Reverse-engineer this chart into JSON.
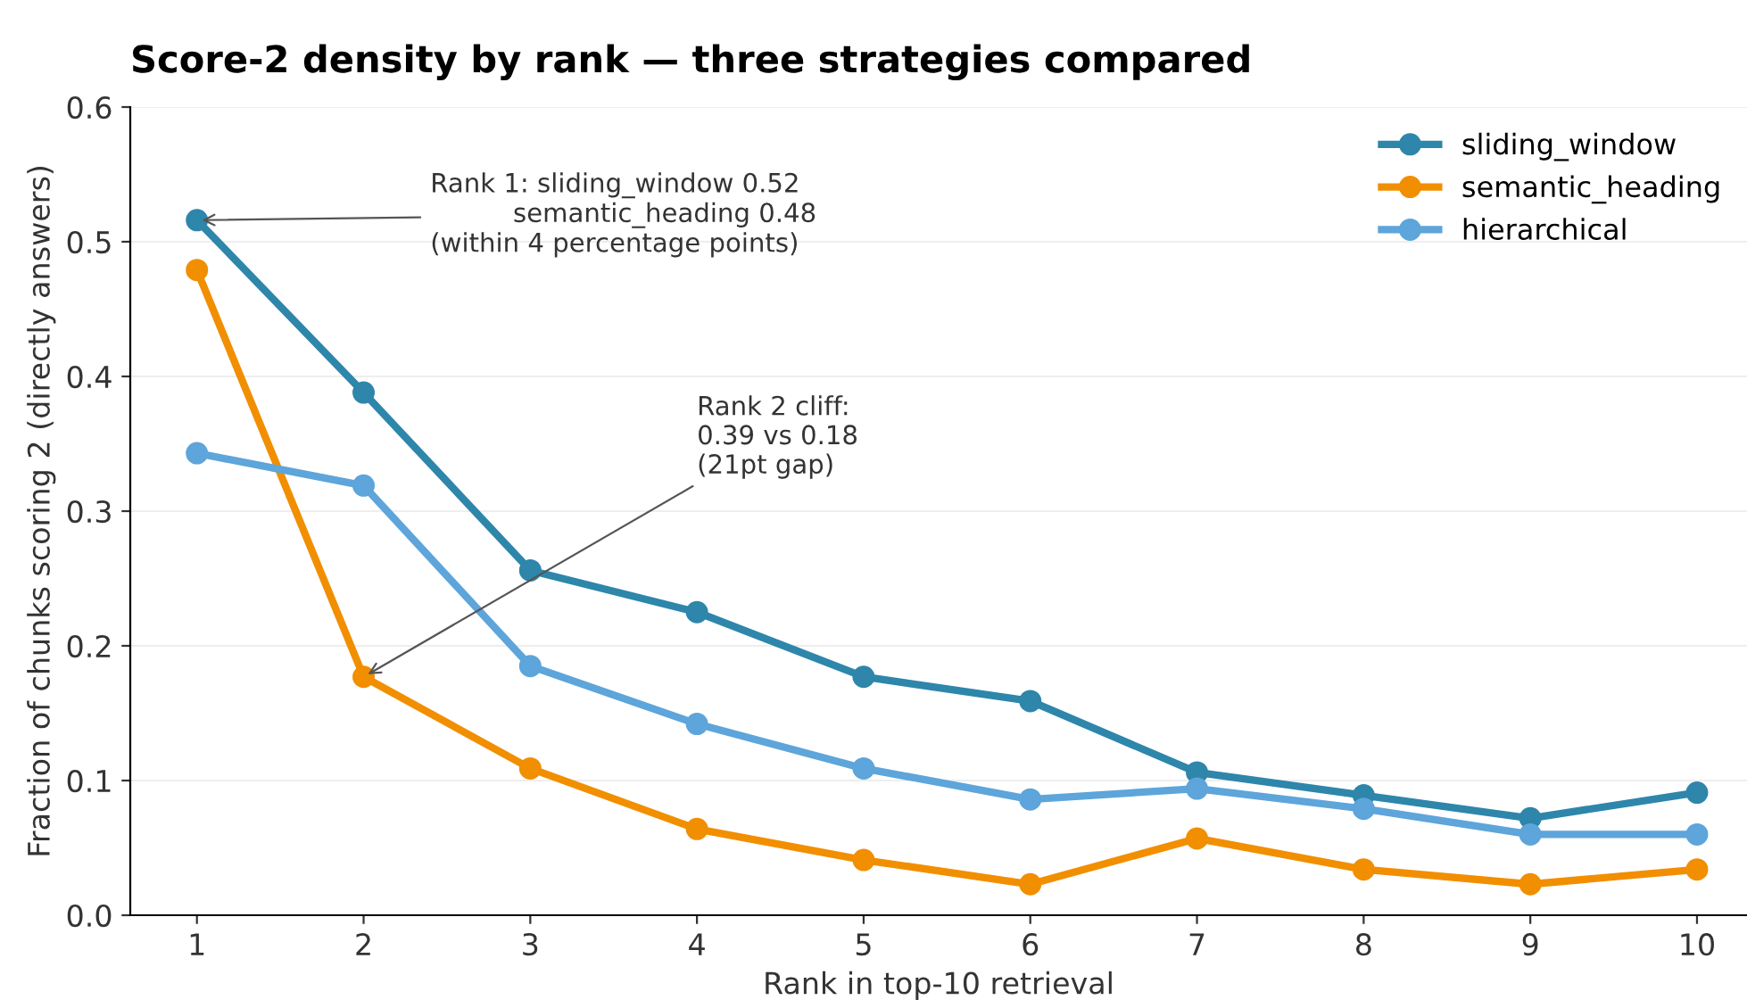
{
  "chart_data": {
    "type": "line",
    "title": "Score-2 density by rank — three strategies compared",
    "xlabel": "Rank in top-10 retrieval",
    "ylabel": "Fraction of chunks scoring 2 (directly answers)",
    "x": [
      1,
      2,
      3,
      4,
      5,
      6,
      7,
      8,
      9,
      10
    ],
    "series": [
      {
        "name": "sliding_window",
        "color": "#2e86ab",
        "values": [
          0.516,
          0.388,
          0.256,
          0.225,
          0.177,
          0.159,
          0.106,
          0.089,
          0.072,
          0.091
        ]
      },
      {
        "name": "semantic_heading",
        "color": "#f18f01",
        "values": [
          0.479,
          0.177,
          0.109,
          0.064,
          0.041,
          0.023,
          0.057,
          0.034,
          0.023,
          0.034
        ]
      },
      {
        "name": "hierarchical",
        "color": "#5da5da",
        "values": [
          0.343,
          0.319,
          0.185,
          0.142,
          0.109,
          0.086,
          0.094,
          0.079,
          0.06,
          0.06
        ]
      }
    ],
    "xlim": [
      0.6,
      10.3
    ],
    "xticks": [
      1,
      2,
      3,
      4,
      5,
      6,
      7,
      8,
      9,
      10
    ],
    "ylim": [
      0,
      0.6
    ],
    "yticks": [
      {
        "value": 0,
        "label": "0.0"
      },
      0.1,
      0.2,
      0.3,
      0.4,
      0.5,
      0.6
    ],
    "annotations": [
      {
        "text": "Rank 1: sliding_window 0.52\n          semantic_heading 0.48\n(within 4 percentage points)",
        "x": 1,
        "y": 0.516
      },
      {
        "text": "Rank 2 cliff:\n0.39 vs 0.18\n(21pt gap)",
        "x": 2,
        "y": 0.177
      }
    ],
    "grid": "y",
    "legend": "top right",
    "marker": "circle",
    "line_style": "solid"
  }
}
